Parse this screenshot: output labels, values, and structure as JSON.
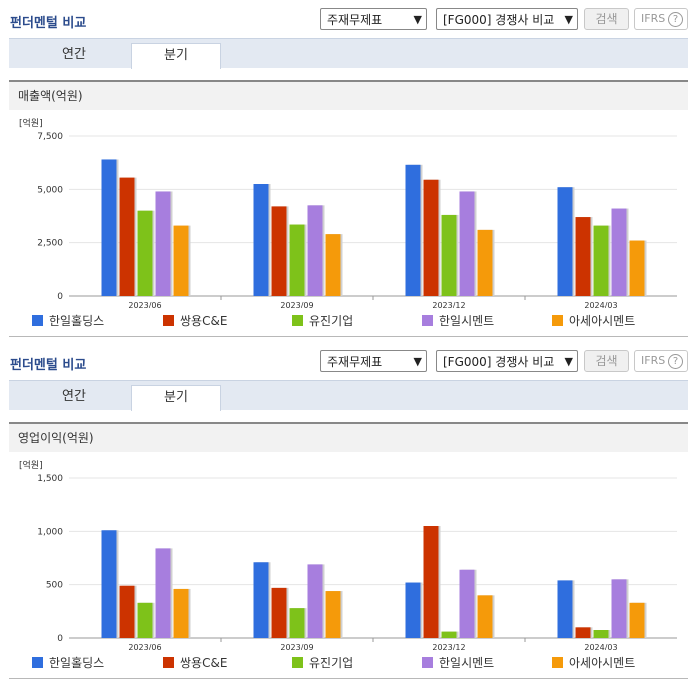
{
  "colors": {
    "s1": "#2f6ede",
    "s2": "#cc3300",
    "s3": "#7ec21a",
    "s4": "#a77ede",
    "s5": "#f59a0a"
  },
  "panels": [
    {
      "title": "펀더멘털 비교",
      "select1": "주재무제표",
      "select2": "[FG000] 경쟁사 비교",
      "search_label": "검색",
      "ifrs_label": "IFRS",
      "help_icon": "?",
      "tabs": [
        {
          "label": "연간"
        },
        {
          "label": "분기"
        }
      ],
      "metric_title": "매출액(억원)",
      "legend": [
        "한일홀딩스",
        "쌍용C&E",
        "유진기업",
        "한일시멘트",
        "아세아시멘트"
      ]
    },
    {
      "title": "펀더멘털 비교",
      "select1": "주재무제표",
      "select2": "[FG000] 경쟁사 비교",
      "search_label": "검색",
      "ifrs_label": "IFRS",
      "help_icon": "?",
      "tabs": [
        {
          "label": "연간"
        },
        {
          "label": "분기"
        }
      ],
      "metric_title": "영업이익(억원)",
      "legend": [
        "한일홀딩스",
        "쌍용C&E",
        "유진기업",
        "한일시멘트",
        "아세아시멘트"
      ]
    }
  ],
  "chart_data": [
    {
      "type": "bar",
      "title": "매출액(억원)",
      "unit_label": "[억원]",
      "categories": [
        "2023/06",
        "2023/09",
        "2023/12",
        "2024/03"
      ],
      "yticks": [
        "0",
        "2,500",
        "5,000",
        "7,500"
      ],
      "ylim": [
        0,
        7500
      ],
      "grid": true,
      "legend_position": "bottom",
      "series": [
        {
          "name": "한일홀딩스",
          "values": [
            6400,
            5250,
            6150,
            5100
          ]
        },
        {
          "name": "쌍용C&E",
          "values": [
            5550,
            4200,
            5450,
            3700
          ]
        },
        {
          "name": "유진기업",
          "values": [
            4000,
            3350,
            3800,
            3300
          ]
        },
        {
          "name": "한일시멘트",
          "values": [
            4900,
            4250,
            4900,
            4100
          ]
        },
        {
          "name": "아세아시멘트",
          "values": [
            3300,
            2900,
            3100,
            2600
          ]
        }
      ]
    },
    {
      "type": "bar",
      "title": "영업이익(억원)",
      "unit_label": "[억원]",
      "categories": [
        "2023/06",
        "2023/09",
        "2023/12",
        "2024/03"
      ],
      "yticks": [
        "0",
        "500",
        "1,000",
        "1,500"
      ],
      "ylim": [
        0,
        1500
      ],
      "grid": true,
      "legend_position": "bottom",
      "series": [
        {
          "name": "한일홀딩스",
          "values": [
            1010,
            710,
            520,
            540
          ]
        },
        {
          "name": "쌍용C&E",
          "values": [
            490,
            470,
            1050,
            100
          ]
        },
        {
          "name": "유진기업",
          "values": [
            330,
            280,
            60,
            75
          ]
        },
        {
          "name": "한일시멘트",
          "values": [
            840,
            690,
            640,
            550
          ]
        },
        {
          "name": "아세아시멘트",
          "values": [
            460,
            440,
            400,
            330
          ]
        }
      ]
    }
  ]
}
